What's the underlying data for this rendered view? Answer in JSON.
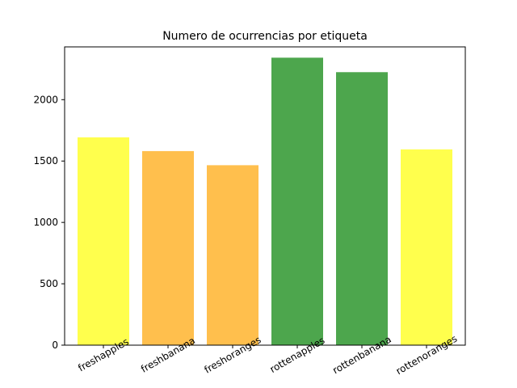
{
  "chart_data": {
    "type": "bar",
    "title": "Numero de ocurrencias por etiqueta",
    "xlabel": "",
    "ylabel": "",
    "categories": [
      "freshapples",
      "freshbanana",
      "freshoranges",
      "rottenapples",
      "rottenbanana",
      "rottenoranges"
    ],
    "values": [
      1693,
      1581,
      1466,
      2342,
      2224,
      1595
    ],
    "colors": [
      "#ffff4d",
      "#ffbf4d",
      "#ffbf4d",
      "#4da64d",
      "#4da64d",
      "#ffff4d"
    ],
    "ylim": [
      0,
      2430
    ],
    "yticks": [
      0,
      500,
      1000,
      1500,
      2000
    ],
    "grid": false,
    "xtick_rotation": -30
  }
}
